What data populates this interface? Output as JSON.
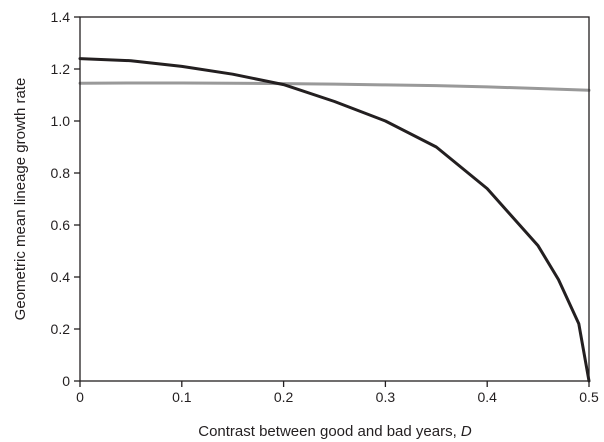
{
  "chart_data": {
    "type": "line",
    "xlabel": "Contrast between good and bad years, ",
    "xlabel_var": "D",
    "ylabel": "Geometric mean lineage growth rate",
    "xlim": [
      0,
      0.5
    ],
    "ylim": [
      0,
      1.4
    ],
    "x_ticks": [
      0,
      0.1,
      0.2,
      0.3,
      0.4,
      0.5
    ],
    "x_tick_labels": [
      "0",
      "0.1",
      "0.2",
      "0.3",
      "0.4",
      "0.5"
    ],
    "y_ticks": [
      0,
      0.2,
      0.4,
      0.6,
      0.8,
      1.0,
      1.2,
      1.4
    ],
    "y_tick_labels": [
      "0",
      "0.2",
      "0.4",
      "0.6",
      "0.8",
      "1.0",
      "1.2",
      "1.4"
    ],
    "grid": false,
    "legend": "none",
    "series": [
      {
        "color": "#231f20",
        "x": [
          0,
          0.05,
          0.1,
          0.15,
          0.2,
          0.25,
          0.3,
          0.35,
          0.4,
          0.45,
          0.47,
          0.49,
          0.5
        ],
        "y": [
          1.24,
          1.232,
          1.21,
          1.18,
          1.14,
          1.075,
          1.0,
          0.9,
          0.74,
          0.52,
          0.39,
          0.22,
          0
        ]
      },
      {
        "color": "#999999",
        "x": [
          0,
          0.05,
          0.1,
          0.15,
          0.2,
          0.25,
          0.3,
          0.35,
          0.4,
          0.45,
          0.5
        ],
        "y": [
          1.145,
          1.146,
          1.146,
          1.145,
          1.144,
          1.142,
          1.139,
          1.136,
          1.131,
          1.125,
          1.118
        ]
      }
    ]
  }
}
